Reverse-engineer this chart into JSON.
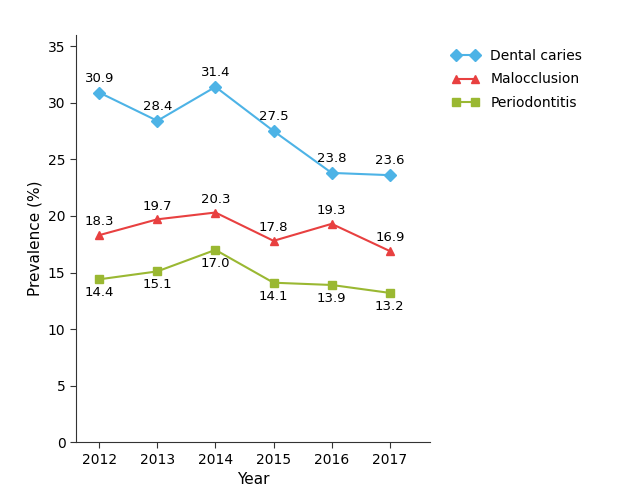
{
  "years": [
    2012,
    2013,
    2014,
    2015,
    2016,
    2017
  ],
  "dental_caries": [
    30.9,
    28.4,
    31.4,
    27.5,
    23.8,
    23.6
  ],
  "malocclusion": [
    18.3,
    19.7,
    20.3,
    17.8,
    19.3,
    16.9
  ],
  "periodontitis": [
    14.4,
    15.1,
    17.0,
    14.1,
    13.9,
    13.2
  ],
  "dental_caries_color": "#4db3e6",
  "malocclusion_color": "#e84040",
  "periodontitis_color": "#9ab832",
  "dental_caries_label": "Dental caries",
  "malocclusion_label": "Malocclusion",
  "periodontitis_label": "Periodontitis",
  "xlabel": "Year",
  "ylabel": "Prevalence (%)",
  "ylim": [
    0,
    36
  ],
  "yticks": [
    0,
    5,
    10,
    15,
    20,
    25,
    30,
    35
  ],
  "xlim": [
    2011.6,
    2017.7
  ],
  "fontsize_annotation": 9.5,
  "fontsize_label": 11,
  "fontsize_tick": 10,
  "fontsize_legend": 10,
  "linewidth": 1.5,
  "markersize": 6,
  "background_color": "#ffffff"
}
